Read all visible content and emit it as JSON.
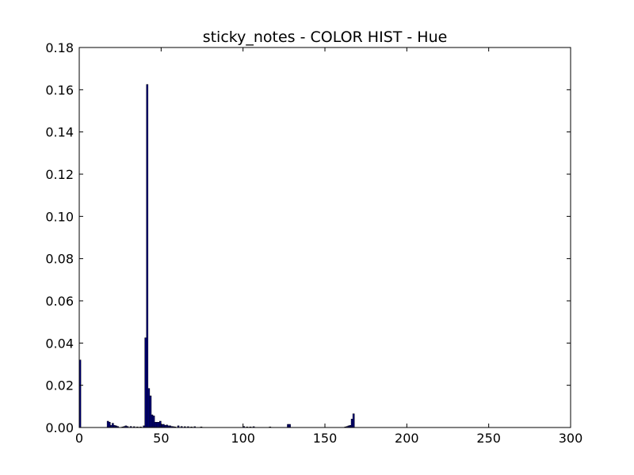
{
  "chart_data": {
    "type": "bar",
    "title": "sticky_notes - COLOR HIST - Hue",
    "xlabel": "",
    "ylabel": "",
    "xlim": [
      0,
      300
    ],
    "ylim": [
      0,
      0.18
    ],
    "xticks": [
      "0",
      "50",
      "100",
      "150",
      "200",
      "250",
      "300"
    ],
    "yticks": [
      "0.00",
      "0.02",
      "0.04",
      "0.06",
      "0.08",
      "0.10",
      "0.12",
      "0.14",
      "0.16",
      "0.18"
    ],
    "xtick_values": [
      0,
      50,
      100,
      150,
      200,
      250,
      300
    ],
    "ytick_values": [
      0,
      0.02,
      0.04,
      0.06,
      0.08,
      0.1,
      0.12,
      0.14,
      0.16,
      0.18
    ],
    "grid": false,
    "bar_color": "#000080",
    "bar_edge_color": "#000000",
    "series": [
      {
        "x": [
          0,
          17,
          18,
          19,
          20,
          21,
          22,
          23,
          26,
          27,
          28,
          29,
          31,
          33,
          35,
          37,
          39,
          40,
          41,
          42,
          43,
          44,
          45,
          46,
          47,
          48,
          49,
          50,
          51,
          52,
          53,
          54,
          55,
          56,
          57,
          58,
          60,
          62,
          64,
          66,
          68,
          70,
          74,
          100,
          102,
          104,
          106,
          116,
          127,
          128,
          162,
          163,
          164,
          165,
          166,
          167
        ],
        "values": [
          0.032,
          0.003,
          0.0025,
          0.001,
          0.002,
          0.001,
          0.0008,
          0.0005,
          0.0003,
          0.0005,
          0.0008,
          0.0005,
          0.0005,
          0.0004,
          0.0003,
          0.0003,
          0.0008,
          0.0425,
          0.1625,
          0.0185,
          0.015,
          0.006,
          0.0055,
          0.0025,
          0.0025,
          0.0025,
          0.003,
          0.0015,
          0.0015,
          0.001,
          0.0012,
          0.0008,
          0.0008,
          0.0005,
          0.0004,
          0.0003,
          0.0008,
          0.0005,
          0.0004,
          0.0004,
          0.0003,
          0.0004,
          0.0003,
          0.0005,
          0.0003,
          0.0003,
          0.0004,
          0.0003,
          0.0015,
          0.0015,
          0.0003,
          0.0005,
          0.0008,
          0.001,
          0.004,
          0.0065
        ]
      }
    ]
  }
}
